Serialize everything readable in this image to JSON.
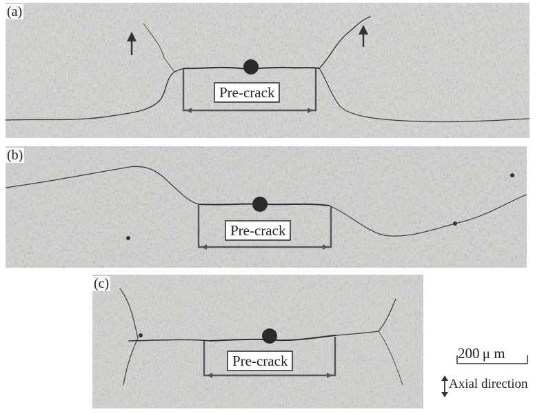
{
  "panels": [
    {
      "id": "a",
      "label": "(a)",
      "annotation": "Pre-crack"
    },
    {
      "id": "b",
      "label": "(b)",
      "annotation": "Pre-crack"
    },
    {
      "id": "c",
      "label": "(c)",
      "annotation": "Pre-crack"
    }
  ],
  "scale": {
    "label": "200 μ m"
  },
  "axial": {
    "label": "Axial direction"
  }
}
